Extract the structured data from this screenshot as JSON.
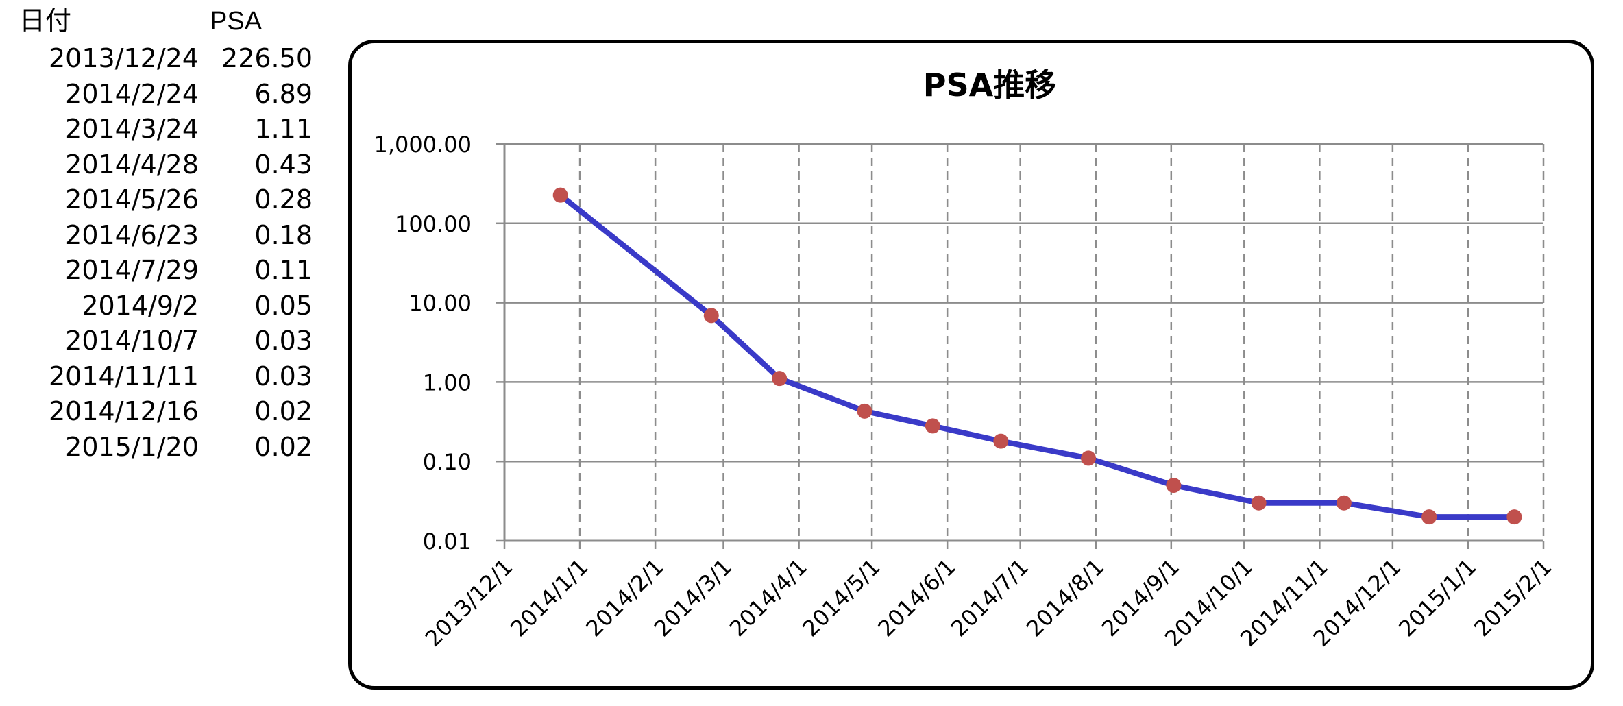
{
  "table": {
    "headers": {
      "date": "日付",
      "psa": "PSA"
    },
    "rows": [
      {
        "date": "2013/12/24",
        "psa": "226.50"
      },
      {
        "date": "2014/2/24",
        "psa": "6.89"
      },
      {
        "date": "2014/3/24",
        "psa": "1.11"
      },
      {
        "date": "2014/4/28",
        "psa": "0.43"
      },
      {
        "date": "2014/5/26",
        "psa": "0.28"
      },
      {
        "date": "2014/6/23",
        "psa": "0.18"
      },
      {
        "date": "2014/7/29",
        "psa": "0.11"
      },
      {
        "date": "2014/9/2",
        "psa": "0.05"
      },
      {
        "date": "2014/10/7",
        "psa": "0.03"
      },
      {
        "date": "2014/11/11",
        "psa": "0.03"
      },
      {
        "date": "2014/12/16",
        "psa": "0.02"
      },
      {
        "date": "2015/1/20",
        "psa": "0.02"
      }
    ]
  },
  "chart_data": {
    "type": "line",
    "title": "PSA推移",
    "xlabel": "",
    "ylabel": "",
    "y_scale": "log",
    "ylim": [
      0.01,
      1000
    ],
    "y_ticks": [
      "1,000.00",
      "100.00",
      "10.00",
      "1.00",
      "0.10",
      "0.01"
    ],
    "xlim": [
      "2013-12-01",
      "2015-02-01"
    ],
    "x_ticks": [
      "2013/12/1",
      "2014/1/1",
      "2014/2/1",
      "2014/3/1",
      "2014/4/1",
      "2014/5/1",
      "2014/6/1",
      "2014/7/1",
      "2014/8/1",
      "2014/9/1",
      "2014/10/1",
      "2014/11/1",
      "2014/12/1",
      "2015/1/1",
      "2015/2/1"
    ],
    "grid": {
      "horizontal": "solid",
      "vertical": "dashed"
    },
    "legend": "none",
    "series": [
      {
        "x": [
          "2013-12-24",
          "2014-02-24",
          "2014-03-24",
          "2014-04-28",
          "2014-05-26",
          "2014-06-23",
          "2014-07-29",
          "2014-09-02",
          "2014-10-07",
          "2014-11-11",
          "2014-12-16",
          "2015-01-20"
        ],
        "y": [
          226.5,
          6.89,
          1.11,
          0.43,
          0.28,
          0.18,
          0.11,
          0.05,
          0.03,
          0.03,
          0.02,
          0.02
        ],
        "line_color": "#3a3ac8",
        "marker_color": "#c0504d"
      }
    ]
  }
}
